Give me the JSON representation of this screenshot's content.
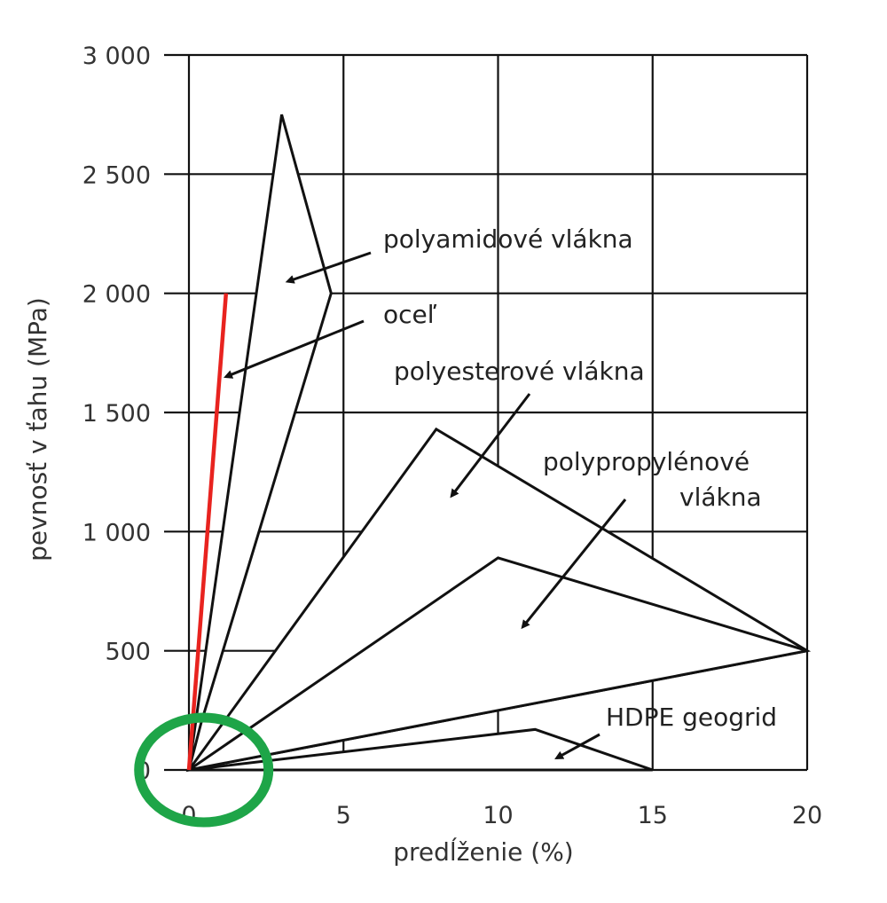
{
  "chart_data": {
    "type": "area",
    "xlabel": "predĺženie (%)",
    "ylabel": "pevnosť v ťahu (MPa)",
    "xlim": [
      0,
      20
    ],
    "ylim": [
      0,
      3000
    ],
    "x_ticks": [
      0,
      5,
      10,
      15,
      20
    ],
    "y_ticks": [
      0,
      500,
      1000,
      1500,
      2000,
      2500,
      3000
    ],
    "x_tick_labels": [
      "0",
      "5",
      "10",
      "15",
      "20"
    ],
    "y_tick_labels": [
      "0",
      "500",
      "1 000",
      "1 500",
      "2 000",
      "2 500",
      "3 000"
    ],
    "grid": true,
    "series": [
      {
        "name": "polyamidové vlákna",
        "shape": "region",
        "pattern": "crosshatch",
        "polygon": [
          [
            0,
            0
          ],
          [
            3,
            2750
          ],
          [
            4.6,
            2000
          ],
          [
            0.4,
            200
          ]
        ]
      },
      {
        "name": "oceľ",
        "shape": "line",
        "color": "#e8231f",
        "points": [
          [
            0,
            0
          ],
          [
            1.2,
            2000
          ]
        ]
      },
      {
        "name": "polyesterové vlákna",
        "shape": "region",
        "pattern": "vertical",
        "polygon": [
          [
            0,
            0
          ],
          [
            8,
            1430
          ],
          [
            20,
            500
          ],
          [
            0,
            0
          ]
        ]
      },
      {
        "name": "polypropylénové vlákna",
        "shape": "region",
        "pattern": "grid",
        "polygon": [
          [
            0,
            0
          ],
          [
            10,
            890
          ],
          [
            20,
            500
          ],
          [
            0,
            0
          ]
        ]
      },
      {
        "name": "HDPE geogrid",
        "shape": "region",
        "pattern": "crosshatch",
        "polygon": [
          [
            0,
            0
          ],
          [
            11.2,
            170
          ],
          [
            15,
            0
          ]
        ]
      }
    ],
    "annotations": [
      {
        "text": "polyamidové vlákna",
        "points_to": [
          3.2,
          2050
        ]
      },
      {
        "text": "oceľ",
        "points_to": [
          1.2,
          1650
        ]
      },
      {
        "text": "polyesterové vlákna",
        "points_to": [
          8.5,
          1150
        ]
      },
      {
        "text": "polypropylénové",
        "points_to": [
          10.8,
          600
        ]
      },
      {
        "text": "vlákna",
        "points_to": null
      },
      {
        "text": "HDPE geogrid",
        "points_to": [
          11.9,
          50
        ]
      }
    ],
    "highlight": {
      "shape": "circle",
      "color": "#1ea548",
      "center": [
        0.25,
        0
      ]
    }
  }
}
